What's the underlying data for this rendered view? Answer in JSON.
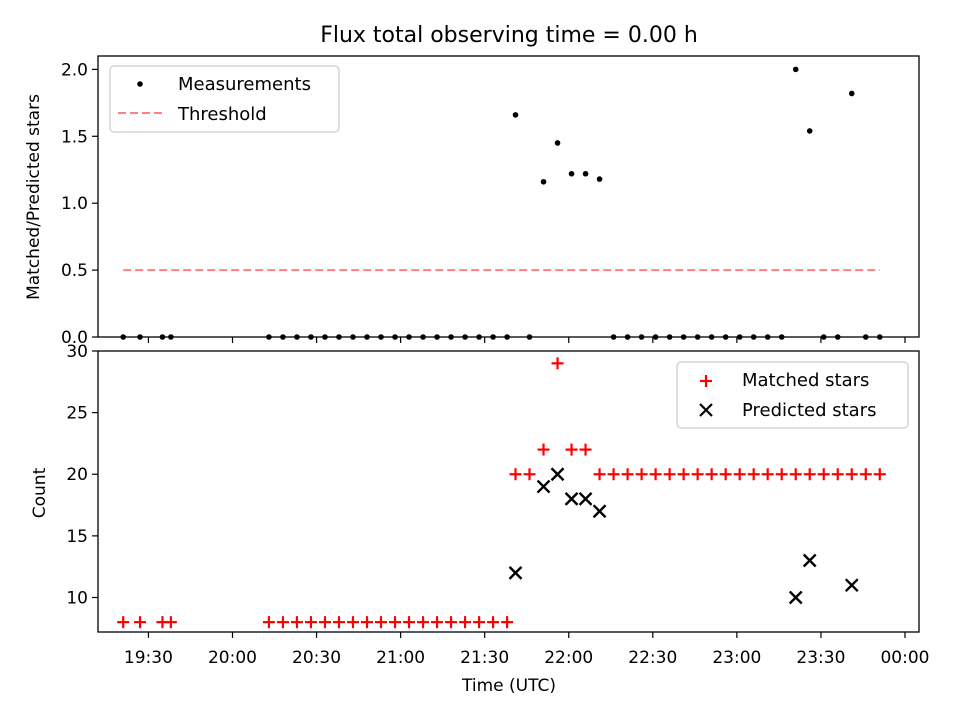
{
  "title": "Flux total observing time = 0.00 h",
  "chart_data": [
    {
      "type": "scatter",
      "ylabel": "Matched/Predicted stars",
      "xlim": [
        "19:12",
        "00:05"
      ],
      "ylim": [
        0,
        2.1
      ],
      "yticks": [
        0.0,
        0.5,
        1.0,
        1.5,
        2.0
      ],
      "ytick_labels": [
        "0.0",
        "0.5",
        "1.0",
        "1.5",
        "2.0"
      ],
      "legend": {
        "placement": "upper-left",
        "entries": [
          "Measurements",
          "Threshold"
        ]
      },
      "series": [
        {
          "name": "Measurements",
          "color": "#000000",
          "x": [
            "19:21",
            "19:27",
            "19:35",
            "19:38",
            "20:13",
            "20:18",
            "20:23",
            "20:28",
            "20:33",
            "20:38",
            "20:43",
            "20:48",
            "20:53",
            "20:58",
            "21:03",
            "21:08",
            "21:13",
            "21:18",
            "21:23",
            "21:28",
            "21:33",
            "21:38",
            "21:41",
            "21:46",
            "21:51",
            "21:56",
            "22:01",
            "22:06",
            "22:11",
            "22:16",
            "22:21",
            "22:26",
            "22:31",
            "22:36",
            "22:41",
            "22:46",
            "22:51",
            "22:56",
            "23:01",
            "23:06",
            "23:11",
            "23:16",
            "23:21",
            "23:26",
            "23:31",
            "23:36",
            "23:41",
            "23:46",
            "23:51"
          ],
          "y": [
            0,
            0,
            0,
            0,
            0,
            0,
            0,
            0,
            0,
            0,
            0,
            0,
            0,
            0,
            0,
            0,
            0,
            0,
            0,
            0,
            0,
            0,
            1.66,
            0,
            1.16,
            1.45,
            1.22,
            1.22,
            1.18,
            0,
            0,
            0,
            0,
            0,
            0,
            0,
            0,
            0,
            0,
            0,
            0,
            0,
            2.0,
            1.54,
            0,
            0,
            1.82,
            0,
            0
          ]
        },
        {
          "name": "Threshold",
          "color": "#ff8080",
          "style": "dashed",
          "x": [
            "19:21",
            "23:51"
          ],
          "y": [
            0.5,
            0.5
          ]
        }
      ]
    },
    {
      "type": "scatter",
      "xlabel": "Time (UTC)",
      "ylabel": "Count",
      "xlim": [
        "19:12",
        "00:05"
      ],
      "ylim": [
        7.2,
        30
      ],
      "yticks": [
        10,
        15,
        20,
        25,
        30
      ],
      "ytick_labels": [
        "10",
        "15",
        "20",
        "25",
        "30"
      ],
      "xticks": [
        "19:30",
        "20:00",
        "20:30",
        "21:00",
        "21:30",
        "22:00",
        "22:30",
        "23:00",
        "23:30",
        "00:00"
      ],
      "legend": {
        "placement": "upper-right",
        "entries": [
          "Matched stars",
          "Predicted stars"
        ]
      },
      "series": [
        {
          "name": "Matched stars",
          "color": "#ff0000",
          "marker": "plus",
          "x": [
            "19:21",
            "19:27",
            "19:35",
            "19:38",
            "20:13",
            "20:18",
            "20:23",
            "20:28",
            "20:33",
            "20:38",
            "20:43",
            "20:48",
            "20:53",
            "20:58",
            "21:03",
            "21:08",
            "21:13",
            "21:18",
            "21:23",
            "21:28",
            "21:33",
            "21:38",
            "21:41",
            "21:46",
            "21:51",
            "21:56",
            "22:01",
            "22:06",
            "22:11",
            "22:16",
            "22:21",
            "22:26",
            "22:31",
            "22:36",
            "22:41",
            "22:46",
            "22:51",
            "22:56",
            "23:01",
            "23:06",
            "23:11",
            "23:16",
            "23:21",
            "23:26",
            "23:31",
            "23:36",
            "23:41",
            "23:46",
            "23:51"
          ],
          "y": [
            8,
            8,
            8,
            8,
            8,
            8,
            8,
            8,
            8,
            8,
            8,
            8,
            8,
            8,
            8,
            8,
            8,
            8,
            8,
            8,
            8,
            8,
            20,
            20,
            22,
            29,
            22,
            22,
            20,
            20,
            20,
            20,
            20,
            20,
            20,
            20,
            20,
            20,
            20,
            20,
            20,
            20,
            20,
            20,
            20,
            20,
            20,
            20,
            20
          ]
        },
        {
          "name": "Predicted stars",
          "color": "#000000",
          "marker": "x",
          "x": [
            "21:41",
            "21:51",
            "21:56",
            "22:01",
            "22:06",
            "22:11",
            "23:21",
            "23:26",
            "23:41"
          ],
          "y": [
            12,
            19,
            20,
            18,
            18,
            17,
            10,
            13,
            11
          ]
        }
      ]
    }
  ]
}
